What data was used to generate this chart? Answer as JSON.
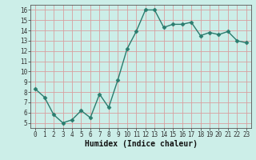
{
  "title": "",
  "xlabel": "Humidex (Indice chaleur)",
  "ylabel": "",
  "x": [
    0,
    1,
    2,
    3,
    4,
    5,
    6,
    7,
    8,
    9,
    10,
    11,
    12,
    13,
    14,
    15,
    16,
    17,
    18,
    19,
    20,
    21,
    22,
    23
  ],
  "y": [
    8.3,
    7.5,
    5.8,
    5.0,
    5.3,
    6.2,
    5.5,
    7.8,
    6.5,
    9.2,
    12.2,
    13.9,
    16.0,
    16.0,
    14.3,
    14.6,
    14.6,
    14.8,
    13.5,
    13.8,
    13.6,
    13.9,
    13.0,
    12.8
  ],
  "line_color": "#2a7c6e",
  "marker": "D",
  "marker_size": 2.5,
  "bg_color": "#cceee8",
  "grid_color": "#d8a0a0",
  "ylim": [
    4.5,
    16.5
  ],
  "xlim": [
    -0.5,
    23.5
  ],
  "yticks": [
    5,
    6,
    7,
    8,
    9,
    10,
    11,
    12,
    13,
    14,
    15,
    16
  ],
  "xticks": [
    0,
    1,
    2,
    3,
    4,
    5,
    6,
    7,
    8,
    9,
    10,
    11,
    12,
    13,
    14,
    15,
    16,
    17,
    18,
    19,
    20,
    21,
    22,
    23
  ],
  "tick_fontsize": 5.5,
  "xlabel_fontsize": 7,
  "line_width": 1.0
}
